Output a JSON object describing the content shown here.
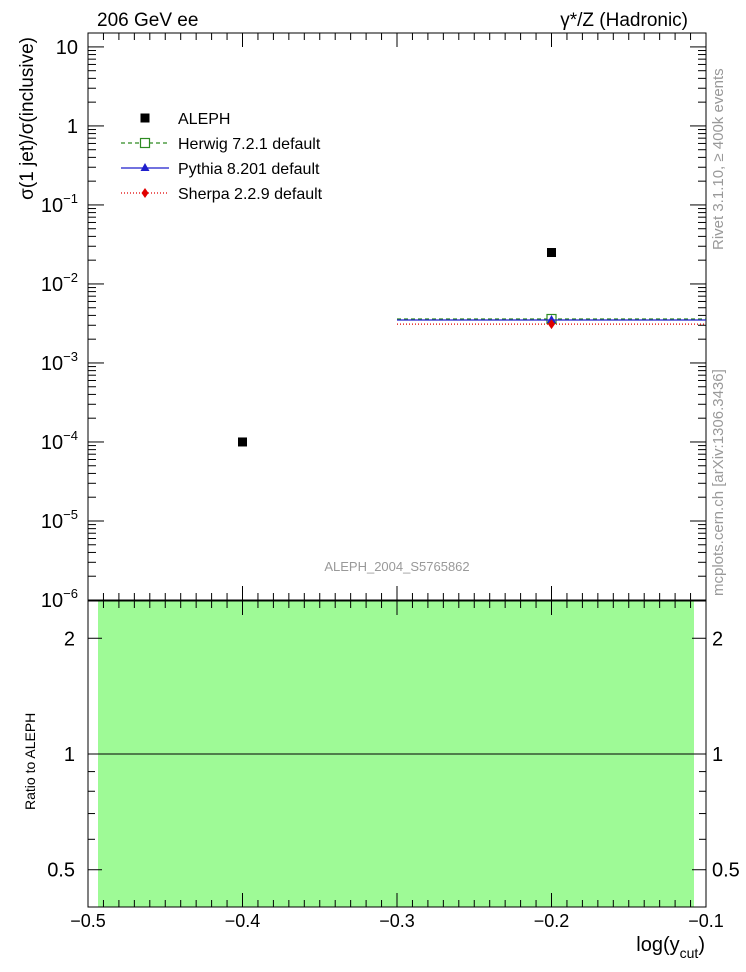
{
  "header": {
    "left": "206 GeV ee",
    "right": "γ*/Z (Hadronic)"
  },
  "side_labels": {
    "rivet": "Rivet 3.1.10, ≥ 400k events",
    "mcplots": "mcplots.cern.ch [arXiv:1306.3436]"
  },
  "analysis_tag": "ALEPH_2004_S5765862",
  "colors": {
    "data": "#000000",
    "herwig": "#2e8b22",
    "pythia": "#1f1fcc",
    "sherpa": "#e00000",
    "ratio_band": "#9efa96"
  },
  "chart_data": [
    {
      "type": "scatter",
      "panel": "main",
      "ylabel": "σ(1 jet)/σ(inclusive)",
      "y_scale": "log",
      "xlim": [
        -0.5,
        -0.1
      ],
      "ylim": [
        1e-06,
        15
      ],
      "y_ticks": [
        {
          "value": 1e-06,
          "label_base": "10",
          "label_exp": "−6"
        },
        {
          "value": 1e-05,
          "label_base": "10",
          "label_exp": "−5"
        },
        {
          "value": 0.0001,
          "label_base": "10",
          "label_exp": "−4"
        },
        {
          "value": 0.001,
          "label_base": "10",
          "label_exp": "−3"
        },
        {
          "value": 0.01,
          "label_base": "10",
          "label_exp": "−2"
        },
        {
          "value": 0.1,
          "label_base": "10",
          "label_exp": "−1"
        },
        {
          "value": 1,
          "label_base": "1",
          "label_exp": ""
        },
        {
          "value": 10,
          "label_base": "10",
          "label_exp": ""
        }
      ],
      "legend_position": "top-left",
      "series": [
        {
          "name": "ALEPH",
          "key": "data",
          "marker": "square",
          "points": [
            {
              "x": -0.4,
              "y": 0.0001
            },
            {
              "x": -0.2,
              "y": 0.025
            }
          ]
        },
        {
          "name": "Herwig 7.2.1 default",
          "key": "herwig",
          "marker": "open-square",
          "line": "dashed",
          "bins": [
            {
              "x_low": -0.3,
              "x_high": -0.1,
              "x": -0.2,
              "y": 0.0036
            }
          ]
        },
        {
          "name": "Pythia 8.201 default",
          "key": "pythia",
          "marker": "triangle",
          "line": "solid",
          "bins": [
            {
              "x_low": -0.3,
              "x_high": -0.1,
              "x": -0.2,
              "y": 0.0035
            }
          ]
        },
        {
          "name": "Sherpa 2.2.9 default",
          "key": "sherpa",
          "marker": "diamond",
          "line": "dotted",
          "bins": [
            {
              "x_low": -0.3,
              "x_high": -0.1,
              "x": -0.2,
              "y": 0.0031
            }
          ]
        }
      ]
    },
    {
      "type": "area",
      "panel": "ratio",
      "ylabel": "Ratio to ALEPH",
      "xlabel_main": "log(y",
      "xlabel_sub": "cut",
      "xlabel_close": ")",
      "y_scale": "log",
      "xlim": [
        -0.5,
        -0.1
      ],
      "ylim": [
        0.4,
        2.5
      ],
      "x_ticks": [
        -0.5,
        -0.4,
        -0.3,
        -0.2,
        -0.1
      ],
      "x_tick_labels": [
        "−0.5",
        "−0.4",
        "−0.3",
        "−0.2",
        "−0.1"
      ],
      "y_ticks": [
        0.5,
        1,
        2
      ],
      "y_tick_labels": [
        "0.5",
        "1",
        "2"
      ],
      "band": {
        "x_low": -0.5,
        "x_high": -0.1,
        "y_low": 0.4,
        "y_high": 2.5
      },
      "reference_line": 1
    }
  ]
}
